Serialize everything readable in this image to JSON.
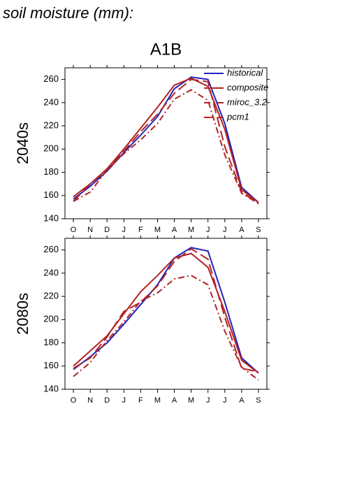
{
  "heading": "soil moisture (mm):",
  "chart_data": [
    {
      "type": "line",
      "title": "A1B",
      "ylabel": "2040s",
      "categories": [
        "O",
        "N",
        "D",
        "J",
        "F",
        "M",
        "A",
        "M",
        "J",
        "J",
        "A",
        "S"
      ],
      "ylim": [
        140,
        270
      ],
      "yticks": [
        140,
        160,
        180,
        200,
        220,
        240,
        260
      ],
      "legend": "upper right",
      "series": [
        {
          "name": "historical",
          "color": "#2222bb",
          "dash": "solid",
          "values": [
            157,
            168,
            181,
            197,
            212,
            228,
            252,
            262,
            260,
            222,
            167,
            154
          ]
        },
        {
          "name": "composite",
          "color": "#b22222",
          "dash": "solid",
          "values": [
            159,
            170,
            183,
            200,
            218,
            236,
            255,
            261,
            254,
            217,
            165,
            154
          ]
        },
        {
          "name": "miroc_3.2",
          "color": "#b22222",
          "dash": "dashdot",
          "values": [
            155,
            163,
            182,
            196,
            208,
            222,
            243,
            251,
            242,
            195,
            162,
            153
          ]
        },
        {
          "name": "pcm1",
          "color": "#b22222",
          "dash": "longdash",
          "values": [
            155,
            170,
            182,
            198,
            215,
            230,
            248,
            260,
            258,
            202,
            163,
            153
          ]
        }
      ]
    },
    {
      "type": "line",
      "ylabel": "2080s",
      "categories": [
        "O",
        "N",
        "D",
        "J",
        "F",
        "M",
        "A",
        "M",
        "J",
        "J",
        "A",
        "S"
      ],
      "ylim": [
        140,
        270
      ],
      "yticks": [
        140,
        160,
        180,
        200,
        220,
        240,
        260
      ],
      "series": [
        {
          "name": "historical",
          "color": "#2222bb",
          "dash": "solid",
          "values": [
            157,
            168,
            180,
            196,
            213,
            230,
            253,
            262,
            259,
            215,
            167,
            154
          ]
        },
        {
          "name": "composite",
          "color": "#b22222",
          "dash": "solid",
          "values": [
            160,
            173,
            186,
            205,
            224,
            238,
            253,
            257,
            245,
            207,
            165,
            154
          ]
        },
        {
          "name": "miroc_3.2",
          "color": "#b22222",
          "dash": "dashdot",
          "values": [
            151,
            163,
            182,
            198,
            216,
            223,
            235,
            238,
            230,
            190,
            159,
            148
          ]
        },
        {
          "name": "pcm1",
          "color": "#b22222",
          "dash": "longdash",
          "values": [
            158,
            167,
            185,
            207,
            215,
            229,
            250,
            261,
            252,
            202,
            158,
            155
          ]
        }
      ]
    }
  ]
}
